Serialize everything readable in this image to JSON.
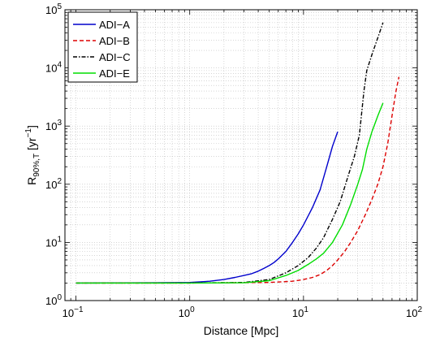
{
  "chart_data": {
    "type": "line",
    "title": "",
    "xlabel": "Distance [Mpc]",
    "ylabel": {
      "base": "R",
      "sub": "90%,T",
      "units_prefix": " [yr",
      "units_sup": "−1",
      "units_suffix": "]"
    },
    "xscale": "log",
    "yscale": "log",
    "xlim": [
      0.08,
      100
    ],
    "ylim": [
      1,
      100000
    ],
    "grid": true,
    "legend_position": "top-left",
    "x_ticks": [
      {
        "value": 0.1,
        "base": "10",
        "exp": "−1"
      },
      {
        "value": 1,
        "base": "10",
        "exp": "0"
      },
      {
        "value": 10,
        "base": "10",
        "exp": "1"
      },
      {
        "value": 100,
        "base": "10",
        "exp": "2"
      }
    ],
    "y_ticks": [
      {
        "value": 1,
        "base": "10",
        "exp": "0"
      },
      {
        "value": 10,
        "base": "10",
        "exp": "1"
      },
      {
        "value": 100,
        "base": "10",
        "exp": "2"
      },
      {
        "value": 1000,
        "base": "10",
        "exp": "3"
      },
      {
        "value": 10000,
        "base": "10",
        "exp": "4"
      },
      {
        "value": 100000,
        "base": "10",
        "exp": "5"
      }
    ],
    "series": [
      {
        "name": "ADI−A",
        "color": "#0000cc",
        "dash": "solid",
        "x": [
          0.1,
          0.5,
          1,
          1.5,
          2,
          2.5,
          3,
          3.5,
          4,
          4.5,
          5,
          5.5,
          6,
          7,
          8,
          9,
          10,
          12,
          14,
          16,
          18,
          20
        ],
        "y": [
          2.0,
          2.02,
          2.05,
          2.15,
          2.3,
          2.5,
          2.7,
          2.9,
          3.2,
          3.6,
          4.0,
          4.5,
          5.2,
          7,
          10,
          14,
          20,
          40,
          80,
          200,
          450,
          800
        ]
      },
      {
        "name": "ADI−B",
        "color": "#dd0000",
        "dash": "dashed",
        "x": [
          0.1,
          1,
          5,
          8,
          10,
          12,
          14,
          16,
          18,
          20,
          23,
          26,
          30,
          35,
          40,
          45,
          50,
          55,
          60,
          65,
          69
        ],
        "y": [
          2.0,
          2.0,
          2.05,
          2.15,
          2.3,
          2.5,
          2.8,
          3.3,
          4,
          5,
          7,
          10,
          16,
          30,
          55,
          100,
          200,
          500,
          1500,
          4000,
          7000
        ]
      },
      {
        "name": "ADI−C",
        "color": "#000000",
        "dash": "dashdot",
        "x": [
          0.1,
          1,
          3,
          5,
          7,
          9,
          11,
          13,
          15,
          18,
          21,
          25,
          28,
          31,
          34,
          36,
          40,
          45,
          50
        ],
        "y": [
          2.0,
          2.0,
          2.05,
          2.3,
          3,
          4,
          5.5,
          8,
          12,
          25,
          50,
          150,
          300,
          700,
          4000,
          9000,
          17000,
          33000,
          60000
        ]
      },
      {
        "name": "ADI−E",
        "color": "#00dd00",
        "dash": "solid",
        "x": [
          0.1,
          1,
          3,
          5,
          7,
          9,
          11,
          13,
          15,
          18,
          22,
          26,
          30,
          33,
          36,
          40,
          45,
          50
        ],
        "y": [
          2.0,
          2.0,
          2.02,
          2.2,
          2.7,
          3.3,
          4.2,
          5.2,
          6.5,
          10,
          20,
          45,
          100,
          180,
          400,
          800,
          1500,
          2500
        ]
      }
    ]
  }
}
